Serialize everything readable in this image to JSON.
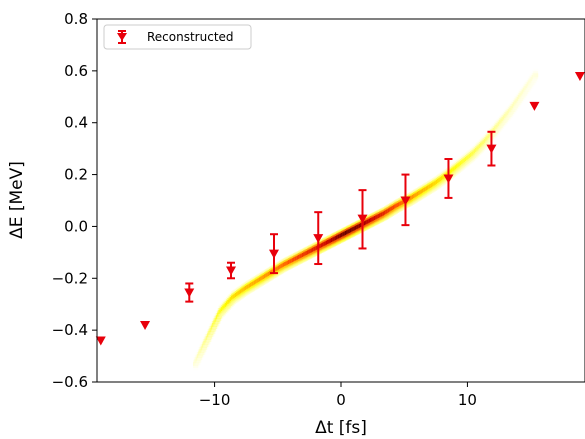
{
  "chart_data": {
    "type": "scatter",
    "title": "",
    "xlabel": "Δt [fs]",
    "ylabel": "ΔE [MeV]",
    "xlim": [
      -19.3,
      19.3
    ],
    "ylim": [
      -0.6,
      0.8
    ],
    "xticks": [
      -10,
      0,
      10
    ],
    "xtick_labels": [
      "−10",
      "0",
      "10"
    ],
    "yticks": [
      -0.6,
      -0.4,
      -0.2,
      0.0,
      0.2,
      0.4,
      0.6,
      0.8
    ],
    "ytick_labels": [
      "−0.6",
      "−0.4",
      "−0.2",
      "0.0",
      "0.2",
      "0.4",
      "0.6",
      "0.8"
    ],
    "grid": false,
    "legend": {
      "position": "top-left",
      "entries": [
        "Reconstructed"
      ]
    },
    "series": [
      {
        "name": "Reconstructed",
        "marker": "triangle-down",
        "color": "#e8000b",
        "x": [
          -19.0,
          -15.5,
          -12.0,
          -8.7,
          -5.3,
          -1.8,
          1.7,
          5.1,
          8.5,
          11.9,
          15.3,
          18.9
        ],
        "y": [
          -0.44,
          -0.38,
          -0.255,
          -0.17,
          -0.105,
          -0.045,
          0.03,
          0.1,
          0.185,
          0.3,
          0.465,
          0.58
        ],
        "err_low": [
          null,
          null,
          0.035,
          0.03,
          0.075,
          0.1,
          0.115,
          0.095,
          0.075,
          0.065,
          null,
          null
        ],
        "err_high": [
          null,
          null,
          0.035,
          0.03,
          0.075,
          0.1,
          0.11,
          0.1,
          0.075,
          0.065,
          null,
          null
        ]
      },
      {
        "type": "heatmap",
        "colormap": "hot_r",
        "x": [
          -11.5,
          -10.5,
          -9.5,
          -8.5,
          -7.5,
          -6.5,
          -5.5,
          -4.5,
          -3.5,
          -2.5,
          -1.5,
          -0.5,
          0.5,
          1.5,
          2.5,
          3.5,
          4.5,
          5.5,
          6.5,
          7.5,
          8.5,
          9.5,
          10.5,
          11.5,
          12.5,
          13.5,
          14.5,
          15.5
        ],
        "y": [
          -0.53,
          -0.43,
          -0.33,
          -0.275,
          -0.24,
          -0.21,
          -0.18,
          -0.15,
          -0.125,
          -0.1,
          -0.075,
          -0.05,
          -0.025,
          0.0,
          0.025,
          0.05,
          0.08,
          0.105,
          0.135,
          0.165,
          0.2,
          0.24,
          0.28,
          0.33,
          0.39,
          0.45,
          0.52,
          0.59
        ],
        "intensity": [
          0.04,
          0.12,
          0.22,
          0.3,
          0.36,
          0.4,
          0.45,
          0.5,
          0.58,
          0.66,
          0.74,
          0.85,
          0.95,
          0.9,
          0.8,
          0.68,
          0.56,
          0.46,
          0.38,
          0.32,
          0.27,
          0.22,
          0.18,
          0.14,
          0.1,
          0.07,
          0.05,
          0.03
        ]
      }
    ]
  }
}
